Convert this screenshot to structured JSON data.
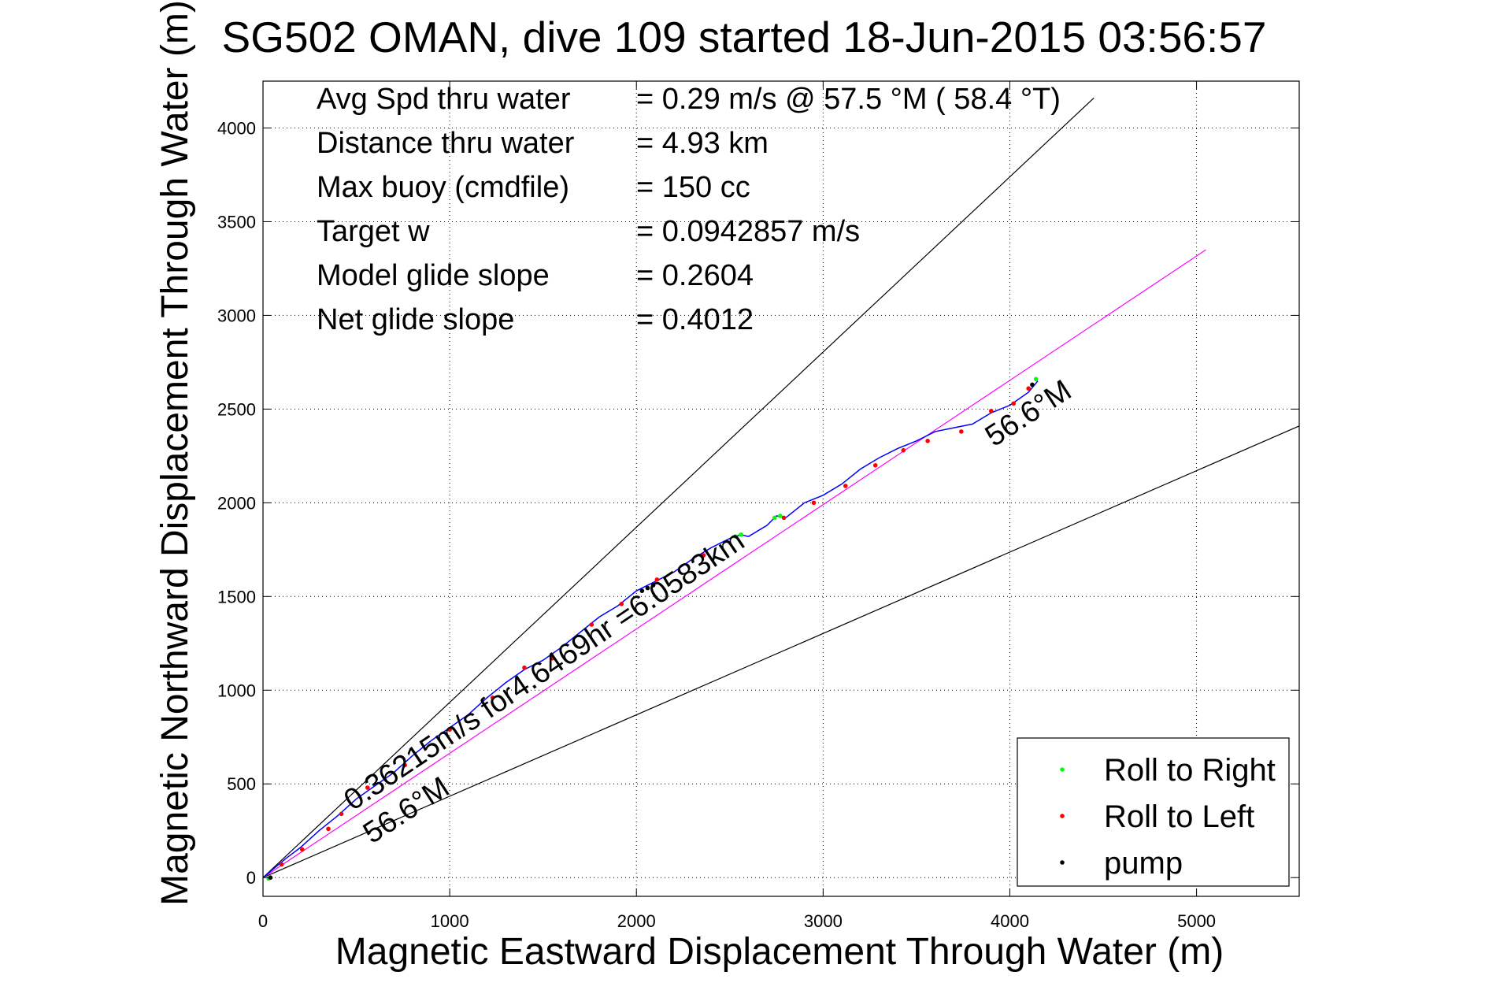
{
  "chart_data": {
    "type": "line",
    "title": "SG502 OMAN, dive 109 started 18-Jun-2015 03:56:57",
    "xlabel": "Magnetic Eastward Displacement Through Water (m)",
    "ylabel": "Magnetic Northward Displacement Through Water (m)",
    "xlim": [
      0,
      5550
    ],
    "ylim": [
      -100,
      4250
    ],
    "xticks": [
      0,
      1000,
      2000,
      3000,
      4000,
      5000
    ],
    "yticks": [
      0,
      500,
      1000,
      1500,
      2000,
      2500,
      3000,
      3500,
      4000
    ],
    "grid": true,
    "stats": [
      {
        "label": "Avg Spd thru water",
        "value": "=  0.29 m/s @  57.5 °M ( 58.4 °T)"
      },
      {
        "label": "Distance thru water",
        "value": "=  4.93 km"
      },
      {
        "label": "Max buoy (cmdfile)",
        "value": "= 150 cc"
      },
      {
        "label": "Target w",
        "value": "= 0.0942857 m/s"
      },
      {
        "label": "Model glide slope",
        "value": "= 0.2604"
      },
      {
        "label": "Net glide slope",
        "value": "= 0.4012"
      }
    ],
    "annotations": {
      "upper_heading": "56.6°M",
      "lower_heading": "56.6°M",
      "current": "0.36215m/s for4.6469hr =6.0583km"
    },
    "reference_lines": [
      {
        "name": "upper-bound",
        "color": "#000000",
        "x": [
          0,
          4450
        ],
        "y": [
          0,
          4160
        ]
      },
      {
        "name": "lower-bound",
        "color": "#000000",
        "x": [
          0,
          5550
        ],
        "y": [
          0,
          2410
        ]
      },
      {
        "name": "net-track",
        "color": "#ff00ff",
        "x": [
          0,
          5050
        ],
        "y": [
          0,
          3350
        ]
      }
    ],
    "series": [
      {
        "name": "",
        "color": "#0000ff",
        "x": [
          0,
          60,
          120,
          200,
          300,
          400,
          500,
          600,
          700,
          800,
          900,
          1000,
          1100,
          1200,
          1300,
          1400,
          1500,
          1600,
          1700,
          1800,
          1900,
          2000,
          2100,
          2200,
          2300,
          2400,
          2500,
          2560,
          2600,
          2700,
          2750,
          2800,
          2900,
          3000,
          3100,
          3200,
          3300,
          3400,
          3500,
          3600,
          3700,
          3800,
          3900,
          4000,
          4100,
          4150
        ],
        "y": [
          0,
          50,
          100,
          160,
          250,
          330,
          420,
          490,
          560,
          650,
          730,
          800,
          870,
          960,
          1040,
          1110,
          1160,
          1230,
          1310,
          1390,
          1450,
          1530,
          1580,
          1630,
          1700,
          1760,
          1810,
          1830,
          1820,
          1880,
          1930,
          1920,
          2000,
          2040,
          2100,
          2180,
          2240,
          2290,
          2330,
          2380,
          2400,
          2420,
          2480,
          2520,
          2590,
          2650
        ]
      }
    ],
    "legend": {
      "placement": "bottom-right",
      "entries": [
        {
          "name": "Roll to Right",
          "color": "#00ff00"
        },
        {
          "name": "Roll to Left",
          "color": "#ff0000"
        },
        {
          "name": "pump",
          "color": "#000000"
        }
      ]
    },
    "markers": {
      "roll_right": {
        "x": [
          30,
          2530,
          2560,
          2740,
          2770,
          4140
        ],
        "y": [
          -5,
          1820,
          1830,
          1920,
          1930,
          2660
        ]
      },
      "roll_left": {
        "x": [
          100,
          210,
          350,
          420,
          560,
          760,
          1000,
          1230,
          1400,
          1550,
          1760,
          1920,
          2110,
          2360,
          2790,
          2950,
          3120,
          3280,
          3430,
          3560,
          3740,
          3900,
          4020,
          4100
        ],
        "y": [
          70,
          150,
          260,
          340,
          480,
          600,
          790,
          960,
          1120,
          1170,
          1350,
          1460,
          1590,
          1720,
          1920,
          2000,
          2090,
          2200,
          2280,
          2330,
          2380,
          2490,
          2530,
          2610
        ]
      },
      "pump": {
        "x": [
          40,
          2030,
          2060,
          2090,
          4120
        ],
        "y": [
          0,
          1530,
          1545,
          1560,
          2630
        ]
      }
    }
  }
}
